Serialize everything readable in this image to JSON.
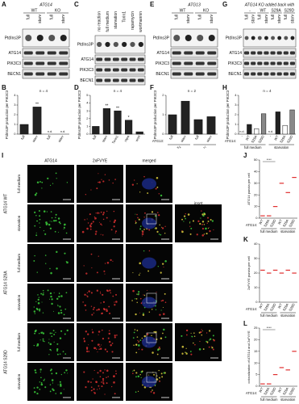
{
  "figure": {
    "blots": [
      {
        "label": "A",
        "header": "ATG14",
        "groups": [
          "WT",
          "KO"
        ],
        "lanes": [
          "full",
          "starv",
          "full",
          "starv"
        ],
        "rows": [
          "PtdIns3P",
          "ATG14",
          "PIK3C3",
          "BECN1"
        ]
      },
      {
        "label": "C",
        "lanes": [
          "no reaction",
          "full medium",
          "starvation",
          "Torin1",
          "rapamycin",
          "wortmannin"
        ],
        "rows": [
          "PtdIns3P",
          "ATG14",
          "PIK3C3",
          "BECN1"
        ]
      },
      {
        "label": "E",
        "header": "ATG13",
        "groups": [
          "WT",
          "KO"
        ],
        "lanes": [
          "full",
          "starv",
          "full",
          "starv"
        ],
        "rows": [
          "PtdIns3P",
          "ATG14",
          "PIK3C3",
          "BECN1"
        ]
      },
      {
        "label": "G",
        "header": "ATG14 KO added back with",
        "groups": [
          "-",
          "WT",
          "S29A",
          "S29D"
        ],
        "lanes": [
          "full",
          "starv",
          "full",
          "starv",
          "full",
          "starv",
          "full",
          "starv"
        ],
        "rows": [
          "PtdIns3P",
          "ATG14",
          "PIK3C3",
          "BECN1"
        ]
      }
    ],
    "bars": [
      {
        "type": "bar",
        "label": "B",
        "ylabel": "PtdIns3P production per PIK3C3",
        "n": "n = 4",
        "categories": [
          "full",
          "starv",
          "full",
          "starv"
        ],
        "values": [
          1,
          2.8,
          null,
          null
        ],
        "null_label": "n.d.",
        "sig": [
          null,
          "**",
          null,
          null
        ],
        "color": "#222222",
        "ylim": [
          0,
          4
        ],
        "yticks": [
          0,
          1,
          2,
          3,
          4
        ]
      },
      {
        "type": "bar",
        "label": "D",
        "ylabel": "PtdIns3P production per PIK3C3",
        "n": "n = 4",
        "categories": [
          "full",
          "starv",
          "Torin1",
          "rapa",
          "wort"
        ],
        "values": [
          1,
          3.3,
          3.0,
          1.8,
          0.3
        ],
        "sig": [
          null,
          "**",
          "**",
          "*",
          null
        ],
        "color": "#222222",
        "ylim": [
          0,
          5
        ],
        "yticks": [
          0,
          1,
          2,
          3,
          4,
          5
        ]
      },
      {
        "type": "bar",
        "label": "F",
        "ylabel": "PtdIns3P production per PIK3C3",
        "n": "n = 2",
        "categories": [
          "full",
          "starv",
          "full",
          "starv"
        ],
        "values": [
          1,
          1.7,
          0.75,
          0.9
        ],
        "xlabel": "ATG13:",
        "groups": [
          "+/+",
          "-/-"
        ],
        "color": "#222222",
        "ylim": [
          0,
          2
        ],
        "yticks": [
          0,
          1,
          2
        ]
      },
      {
        "type": "bar",
        "label": "H",
        "ylabel": "PtdIns3P production per PIK3C3",
        "n": "n = 4",
        "categories": [
          "-",
          "WT",
          "S29A",
          "S29D",
          "-",
          "WT",
          "S29A",
          "S29D"
        ],
        "values": [
          null,
          1,
          0.55,
          2.1,
          null,
          2.3,
          0.9,
          2.5
        ],
        "null_label": "n.d.",
        "xlabel": "ATG14:",
        "groups": [
          "full medium",
          "starvation"
        ],
        "colors": [
          "#222222",
          "#222222",
          "#ffffff",
          "#888888",
          "#222222",
          "#222222",
          "#ffffff",
          "#888888"
        ],
        "ylim": [
          0,
          4
        ],
        "yticks": [
          0,
          1,
          2,
          3,
          4
        ]
      }
    ],
    "micro": {
      "label": "I",
      "columns": [
        "ATG14",
        "2xFVYE",
        "merged",
        "inset"
      ],
      "rows": [
        {
          "name": "ATG14 WT",
          "conditions": [
            "full medium",
            "starvation"
          ]
        },
        {
          "name": "ATG14 S29A",
          "conditions": [
            "full medium",
            "starvation"
          ]
        },
        {
          "name": "ATG14 S29D",
          "conditions": [
            "full medium",
            "starvation"
          ]
        }
      ]
    },
    "dots": [
      {
        "type": "dot",
        "label": "J",
        "ylabel": "ATG14 puncta per cell",
        "categories": [
          "WT",
          "S29A",
          "S29D",
          "WT",
          "S29A",
          "S29D"
        ],
        "values": [
          2,
          2,
          10,
          30,
          22,
          35
        ],
        "xlabel": "ATG14:",
        "groups": [
          "full medium",
          "starvation"
        ],
        "sig": "****",
        "color": "#e03030",
        "ylim": [
          0,
          50
        ],
        "yticks": [
          0,
          10,
          20,
          30,
          40,
          50
        ]
      },
      {
        "type": "dot",
        "label": "K",
        "ylabel": "2xFVYE puncta per cell",
        "categories": [
          "WT",
          "S29A",
          "S29D",
          "WT",
          "S29A",
          "S29D"
        ],
        "values": [
          22,
          20,
          22,
          20,
          22,
          20
        ],
        "xlabel": "ATG14:",
        "groups": [
          "full medium",
          "starvation"
        ],
        "color": "#e03030",
        "ylim": [
          0,
          40
        ],
        "yticks": [
          0,
          10,
          20,
          30,
          40
        ]
      },
      {
        "type": "dot",
        "label": "L",
        "ylabel": "colocalization of ATG14 and 2xFVYE",
        "categories": [
          "WT",
          "S29A",
          "S29D",
          "WT",
          "S29A",
          "S29D"
        ],
        "values": [
          1,
          1,
          5,
          8,
          7,
          15
        ],
        "xlabel": "ATG14:",
        "groups": [
          "full medium",
          "starvation"
        ],
        "sig": "****",
        "color": "#e03030",
        "ylim": [
          0,
          25
        ],
        "yticks": [
          0,
          5,
          10,
          15,
          20,
          25
        ]
      }
    ]
  }
}
